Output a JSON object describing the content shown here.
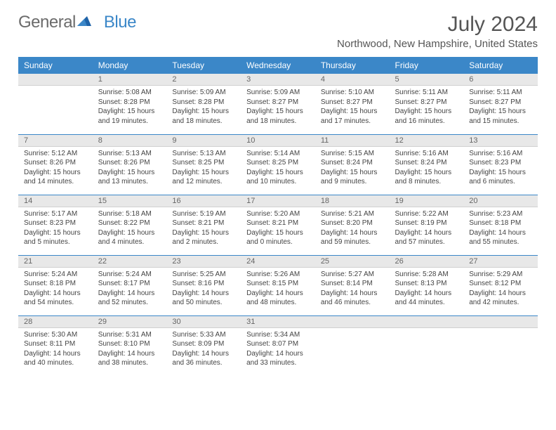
{
  "logo": {
    "text1": "General",
    "text2": "Blue"
  },
  "title": "July 2024",
  "location": "Northwood, New Hampshire, United States",
  "colors": {
    "header_bg": "#3b87c8",
    "header_text": "#ffffff",
    "day_num_bg": "#e8e8e8",
    "border": "#3b87c8",
    "body_text": "#444444",
    "title_text": "#555555"
  },
  "weekdays": [
    "Sunday",
    "Monday",
    "Tuesday",
    "Wednesday",
    "Thursday",
    "Friday",
    "Saturday"
  ],
  "weeks": [
    [
      null,
      {
        "n": "1",
        "sr": "5:08 AM",
        "ss": "8:28 PM",
        "dl": "15 hours and 19 minutes."
      },
      {
        "n": "2",
        "sr": "5:09 AM",
        "ss": "8:28 PM",
        "dl": "15 hours and 18 minutes."
      },
      {
        "n": "3",
        "sr": "5:09 AM",
        "ss": "8:27 PM",
        "dl": "15 hours and 18 minutes."
      },
      {
        "n": "4",
        "sr": "5:10 AM",
        "ss": "8:27 PM",
        "dl": "15 hours and 17 minutes."
      },
      {
        "n": "5",
        "sr": "5:11 AM",
        "ss": "8:27 PM",
        "dl": "15 hours and 16 minutes."
      },
      {
        "n": "6",
        "sr": "5:11 AM",
        "ss": "8:27 PM",
        "dl": "15 hours and 15 minutes."
      }
    ],
    [
      {
        "n": "7",
        "sr": "5:12 AM",
        "ss": "8:26 PM",
        "dl": "15 hours and 14 minutes."
      },
      {
        "n": "8",
        "sr": "5:13 AM",
        "ss": "8:26 PM",
        "dl": "15 hours and 13 minutes."
      },
      {
        "n": "9",
        "sr": "5:13 AM",
        "ss": "8:25 PM",
        "dl": "15 hours and 12 minutes."
      },
      {
        "n": "10",
        "sr": "5:14 AM",
        "ss": "8:25 PM",
        "dl": "15 hours and 10 minutes."
      },
      {
        "n": "11",
        "sr": "5:15 AM",
        "ss": "8:24 PM",
        "dl": "15 hours and 9 minutes."
      },
      {
        "n": "12",
        "sr": "5:16 AM",
        "ss": "8:24 PM",
        "dl": "15 hours and 8 minutes."
      },
      {
        "n": "13",
        "sr": "5:16 AM",
        "ss": "8:23 PM",
        "dl": "15 hours and 6 minutes."
      }
    ],
    [
      {
        "n": "14",
        "sr": "5:17 AM",
        "ss": "8:23 PM",
        "dl": "15 hours and 5 minutes."
      },
      {
        "n": "15",
        "sr": "5:18 AM",
        "ss": "8:22 PM",
        "dl": "15 hours and 4 minutes."
      },
      {
        "n": "16",
        "sr": "5:19 AM",
        "ss": "8:21 PM",
        "dl": "15 hours and 2 minutes."
      },
      {
        "n": "17",
        "sr": "5:20 AM",
        "ss": "8:21 PM",
        "dl": "15 hours and 0 minutes."
      },
      {
        "n": "18",
        "sr": "5:21 AM",
        "ss": "8:20 PM",
        "dl": "14 hours and 59 minutes."
      },
      {
        "n": "19",
        "sr": "5:22 AM",
        "ss": "8:19 PM",
        "dl": "14 hours and 57 minutes."
      },
      {
        "n": "20",
        "sr": "5:23 AM",
        "ss": "8:18 PM",
        "dl": "14 hours and 55 minutes."
      }
    ],
    [
      {
        "n": "21",
        "sr": "5:24 AM",
        "ss": "8:18 PM",
        "dl": "14 hours and 54 minutes."
      },
      {
        "n": "22",
        "sr": "5:24 AM",
        "ss": "8:17 PM",
        "dl": "14 hours and 52 minutes."
      },
      {
        "n": "23",
        "sr": "5:25 AM",
        "ss": "8:16 PM",
        "dl": "14 hours and 50 minutes."
      },
      {
        "n": "24",
        "sr": "5:26 AM",
        "ss": "8:15 PM",
        "dl": "14 hours and 48 minutes."
      },
      {
        "n": "25",
        "sr": "5:27 AM",
        "ss": "8:14 PM",
        "dl": "14 hours and 46 minutes."
      },
      {
        "n": "26",
        "sr": "5:28 AM",
        "ss": "8:13 PM",
        "dl": "14 hours and 44 minutes."
      },
      {
        "n": "27",
        "sr": "5:29 AM",
        "ss": "8:12 PM",
        "dl": "14 hours and 42 minutes."
      }
    ],
    [
      {
        "n": "28",
        "sr": "5:30 AM",
        "ss": "8:11 PM",
        "dl": "14 hours and 40 minutes."
      },
      {
        "n": "29",
        "sr": "5:31 AM",
        "ss": "8:10 PM",
        "dl": "14 hours and 38 minutes."
      },
      {
        "n": "30",
        "sr": "5:33 AM",
        "ss": "8:09 PM",
        "dl": "14 hours and 36 minutes."
      },
      {
        "n": "31",
        "sr": "5:34 AM",
        "ss": "8:07 PM",
        "dl": "14 hours and 33 minutes."
      },
      null,
      null,
      null
    ]
  ],
  "labels": {
    "sunrise": "Sunrise: ",
    "sunset": "Sunset: ",
    "daylight": "Daylight: "
  }
}
